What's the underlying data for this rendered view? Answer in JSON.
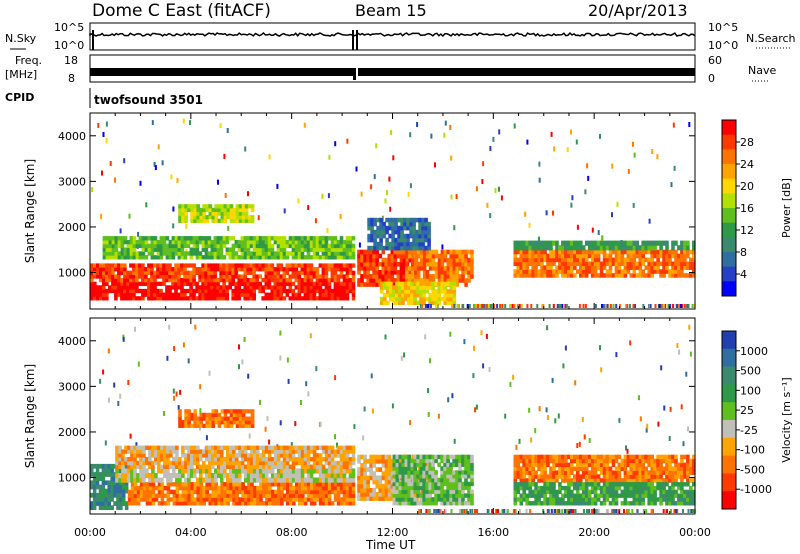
{
  "header": {
    "title": "Dome C East (fitACF)",
    "beam": "Beam 15",
    "date": "20/Apr/2013"
  },
  "top_panels": {
    "nsky_label": "N.Sky",
    "nsky_ticks_left": [
      "10^5",
      "10^0"
    ],
    "nsky_ticks_right": [
      "10^5",
      "10^0"
    ],
    "nsearch_label": "N.Search",
    "freq_label": "Freq.",
    "freq_unit": "[MHz]",
    "freq_ticks": [
      "18",
      "8"
    ],
    "nave_ticks": [
      "60",
      "0"
    ],
    "nave_label": "Nave",
    "cpid_label": "CPID",
    "cpid_value": "twofsound 3501"
  },
  "chart_data": [
    {
      "type": "heatmap",
      "name": "power",
      "ylabel": "Slant Range [km]",
      "ylim": [
        200,
        4500
      ],
      "y_ticks": [
        1000,
        2000,
        3000,
        4000
      ],
      "xlim": [
        0,
        24
      ],
      "colorbar": {
        "label": "Power [dB]",
        "ticks": [
          "28",
          "24",
          "20",
          "16",
          "12",
          "8",
          "4"
        ],
        "colors": [
          "#ff0000",
          "#ff3a00",
          "#ff7300",
          "#ffa300",
          "#ffd700",
          "#b4e000",
          "#5fbf1e",
          "#2e9946",
          "#3a8a6e",
          "#2f6fa0",
          "#2440c8",
          "#0000ff"
        ]
      },
      "bands": [
        {
          "t0": 0,
          "t1": 10.5,
          "r0": 400,
          "r1": 800,
          "level": 0
        },
        {
          "t0": 0,
          "t1": 10.5,
          "r0": 800,
          "r1": 1200,
          "level": 1
        },
        {
          "t0": 0.5,
          "t1": 10.5,
          "r0": 1300,
          "r1": 1800,
          "level": 6
        },
        {
          "t0": 3.5,
          "t1": 6.5,
          "r0": 2100,
          "r1": 2500,
          "level": 5
        },
        {
          "t0": 10.6,
          "t1": 13.0,
          "r0": 700,
          "r1": 1500,
          "level": 1
        },
        {
          "t0": 12.5,
          "t1": 15.2,
          "r0": 700,
          "r1": 1500,
          "level": 2
        },
        {
          "t0": 11.5,
          "t1": 14.5,
          "r0": 300,
          "r1": 800,
          "level": 4
        },
        {
          "t0": 11.0,
          "t1": 13.5,
          "r0": 1500,
          "r1": 2200,
          "level": 9
        },
        {
          "t0": 16.8,
          "t1": 24.0,
          "r0": 900,
          "r1": 1500,
          "level": 2
        },
        {
          "t0": 16.8,
          "t1": 24.0,
          "r0": 1500,
          "r1": 1700,
          "level": 7
        }
      ]
    },
    {
      "type": "heatmap",
      "name": "velocity",
      "ylabel": "Slant Range [km]",
      "ylim": [
        200,
        4500
      ],
      "y_ticks": [
        1000,
        2000,
        3000,
        4000
      ],
      "xlim": [
        0,
        24
      ],
      "x_ticks": [
        "00:00",
        "04:00",
        "08:00",
        "12:00",
        "16:00",
        "20:00",
        "00:00"
      ],
      "xlabel": "Time UT",
      "colorbar": {
        "label": "Velocity [m s⁻¹]",
        "ticks": [
          "1000",
          "500",
          "100",
          "25",
          "-25",
          "-100",
          "-500",
          "-1000"
        ],
        "colors": [
          "#2040b0",
          "#2f6fa0",
          "#3a8a6e",
          "#2e9946",
          "#5fbf1e",
          "#c0c0b8",
          "#ffa300",
          "#ff7300",
          "#ff3a00",
          "#ff0000"
        ]
      },
      "bands": [
        {
          "t0": 0,
          "t1": 1.5,
          "r0": 300,
          "r1": 1300,
          "level": 2
        },
        {
          "t0": 1.5,
          "t1": 10.5,
          "r0": 400,
          "r1": 900,
          "level": 7
        },
        {
          "t0": 1.0,
          "t1": 10.5,
          "r0": 900,
          "r1": 1200,
          "level": 5
        },
        {
          "t0": 1.0,
          "t1": 10.5,
          "r0": 1200,
          "r1": 1700,
          "level": 6
        },
        {
          "t0": 3.5,
          "t1": 6.5,
          "r0": 2100,
          "r1": 2500,
          "level": 7
        },
        {
          "t0": 10.6,
          "t1": 13.5,
          "r0": 500,
          "r1": 1500,
          "level": 6
        },
        {
          "t0": 12.0,
          "t1": 15.2,
          "r0": 400,
          "r1": 1500,
          "level": 4
        },
        {
          "t0": 16.8,
          "t1": 24.0,
          "r0": 900,
          "r1": 1500,
          "level": 7
        },
        {
          "t0": 16.8,
          "t1": 24.0,
          "r0": 400,
          "r1": 900,
          "level": 3
        }
      ]
    }
  ]
}
